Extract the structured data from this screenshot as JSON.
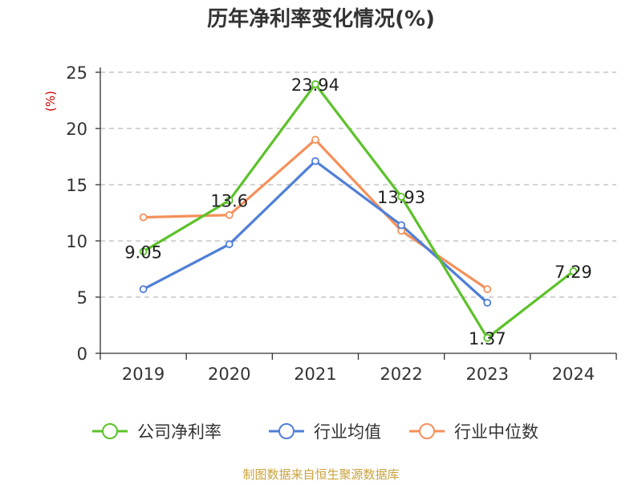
{
  "chart_data": {
    "type": "line",
    "title": "历年净利率变化情况(%)",
    "ylabel": "(%)",
    "xlabel": "",
    "categories": [
      "2019",
      "2020",
      "2021",
      "2022",
      "2023",
      "2024"
    ],
    "ylim": [
      0,
      25
    ],
    "yticks": [
      0,
      5,
      10,
      15,
      20,
      25
    ],
    "grid": "horizontal-dashed",
    "legend_position": "bottom",
    "series": [
      {
        "name": "公司净利率",
        "color": "#5cc22a",
        "values": [
          9.05,
          13.6,
          23.94,
          13.93,
          1.37,
          7.29
        ],
        "labels": [
          "9.05",
          "13.6",
          "23.94",
          "13.93",
          "1.37",
          "7.29"
        ]
      },
      {
        "name": "行业均值",
        "color": "#4f7fd8",
        "values": [
          5.7,
          9.7,
          17.1,
          11.4,
          4.5,
          null
        ]
      },
      {
        "name": "行业中位数",
        "color": "#f5905a",
        "values": [
          12.1,
          12.3,
          19.0,
          10.9,
          5.7,
          null
        ]
      }
    ]
  },
  "source": "制图数据来自恒生聚源数据库"
}
